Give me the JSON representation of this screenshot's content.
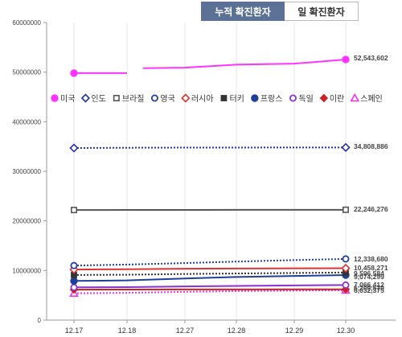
{
  "tabs": [
    {
      "label": "누적 확진환자",
      "active": true
    },
    {
      "label": "일 확진환자",
      "active": false
    }
  ],
  "chart_data": {
    "type": "line",
    "categories": [
      "12.17",
      "12.18",
      "12.27",
      "12.28",
      "12.29",
      "12.30"
    ],
    "ylim": [
      0,
      60000000
    ],
    "y_ticks": [
      0,
      10000000,
      20000000,
      30000000,
      40000000,
      50000000,
      60000000
    ],
    "y_tick_labels": [
      "0",
      "10000000",
      "20000000",
      "30000000",
      "40000000",
      "50000000",
      "60000000"
    ],
    "grid": "vertical",
    "legend_position": "top-inside",
    "series": [
      {
        "name": "미국",
        "color": "#ff33ff",
        "marker": "circle-filled",
        "style": "solid",
        "width": 2,
        "values": [
          49800000,
          49800000,
          50900000,
          51500000,
          51700000,
          52543602
        ],
        "end_label": "52,543,602",
        "gap_after": 1
      },
      {
        "name": "인도",
        "color": "#2233aa",
        "marker": "diamond-open",
        "style": "dotted",
        "width": 2,
        "values": [
          34700000,
          34750000,
          34780000,
          34790000,
          34800000,
          34808886
        ],
        "end_label": "34,808,886"
      },
      {
        "name": "브라질",
        "color": "#555555",
        "marker": "square-open",
        "style": "solid",
        "width": 2,
        "values": [
          22200000,
          22210000,
          22220000,
          22230000,
          22240000,
          22246276
        ],
        "end_label": "22,246,276"
      },
      {
        "name": "영국",
        "color": "#1f3f99",
        "marker": "circle-open",
        "style": "dotted",
        "width": 2,
        "values": [
          11000000,
          11200000,
          11500000,
          11800000,
          12100000,
          12338680
        ],
        "end_label": "12,338,680"
      },
      {
        "name": "러시아",
        "color": "#dd3333",
        "marker": "diamond-open",
        "style": "solid",
        "width": 2,
        "values": [
          10200000,
          10250000,
          10350000,
          10400000,
          10430000,
          10458271
        ],
        "end_label": "10,458,271"
      },
      {
        "name": "터키",
        "color": "#333333",
        "marker": "square-filled",
        "style": "dotted",
        "width": 2,
        "values": [
          9100000,
          9150000,
          9300000,
          9400000,
          9500000,
          9596584
        ],
        "end_label": "9,596,584"
      },
      {
        "name": "프랑스",
        "color": "#1f3f99",
        "marker": "circle-filled",
        "style": "solid",
        "width": 2,
        "values": [
          7900000,
          8000000,
          8400000,
          8700000,
          8900000,
          9074299
        ],
        "end_label": "9,074,299"
      },
      {
        "name": "독일",
        "color": "#8833cc",
        "marker": "circle-open",
        "style": "solid",
        "width": 2,
        "values": [
          6600000,
          6650000,
          6800000,
          6900000,
          7000000,
          7066412
        ],
        "end_label": "7,066,412"
      },
      {
        "name": "이란",
        "color": "#cc2222",
        "marker": "diamond-filled",
        "style": "solid",
        "width": 2,
        "values": [
          6150000,
          6160000,
          6180000,
          6190000,
          6200000,
          6209570
        ],
        "end_label": "6,209,570"
      },
      {
        "name": "스페인",
        "color": "#ee33ee",
        "marker": "triangle-open",
        "style": "dotted",
        "width": 2,
        "values": [
          5400000,
          5500000,
          5700000,
          5850000,
          5950000,
          6032375
        ],
        "end_label": "6,032,375"
      }
    ]
  }
}
